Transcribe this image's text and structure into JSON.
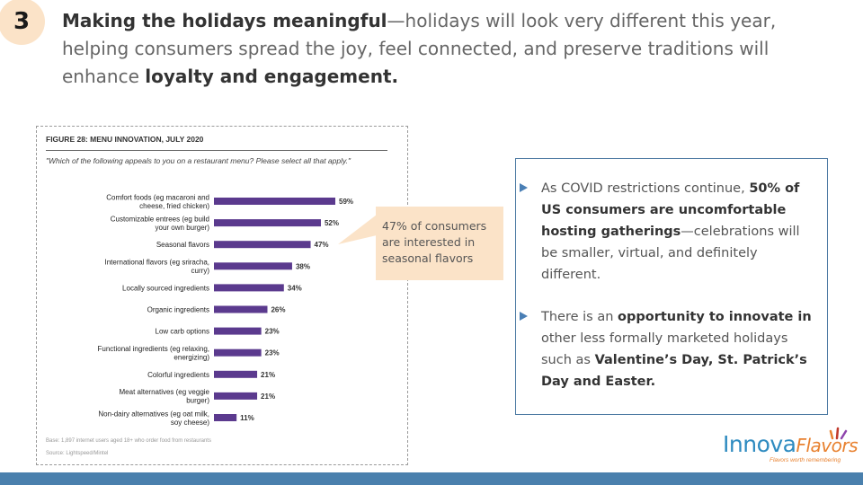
{
  "slide": {
    "number": "3",
    "headline_bold_1": "Making the holidays meaningful",
    "headline_text": "—holidays will look very different this year, helping consumers spread the joy, feel connected, and preserve traditions will enhance ",
    "headline_bold_2": "loyalty and engagement."
  },
  "figure": {
    "title": "FIGURE 28: MENU INNOVATION, JULY 2020",
    "question": "\"Which of the following appeals to you on a restaurant menu? Please select all that apply.\"",
    "base": "Base: 1,897 internet users aged 18+ who order food from restaurants",
    "source": "Source: Lightspeed/Mintel"
  },
  "chart_data": {
    "type": "bar",
    "orientation": "horizontal",
    "title": "FIGURE 28: MENU INNOVATION, JULY 2020",
    "categories": [
      [
        "Comfort foods (eg macaroni and",
        "cheese, fried chicken)"
      ],
      [
        "Customizable entrees (eg build",
        "your own burger)"
      ],
      [
        "Seasonal flavors"
      ],
      [
        "International flavors (eg sriracha,",
        "curry)"
      ],
      [
        "Locally sourced ingredients"
      ],
      [
        "Organic ingredients"
      ],
      [
        "Low carb options"
      ],
      [
        "Functional ingredients (eg relaxing,",
        "energizing)"
      ],
      [
        "Colorful ingredients"
      ],
      [
        "Meat alternatives (eg veggie",
        "burger)"
      ],
      [
        "Non-dairy alternatives (eg oat milk,",
        "soy cheese)"
      ]
    ],
    "values": [
      59,
      52,
      47,
      38,
      34,
      26,
      23,
      23,
      21,
      21,
      11
    ],
    "value_labels": [
      "59%",
      "52%",
      "47%",
      "38%",
      "34%",
      "26%",
      "23%",
      "23%",
      "21%",
      "21%",
      "11%"
    ],
    "bar_color": "#5b3a8e",
    "xlim": [
      0,
      100
    ],
    "grid": false,
    "legend": "none"
  },
  "callout": {
    "text": "47% of consumers are interested in seasonal flavors",
    "color": "#fbe3c8"
  },
  "bullets": {
    "b1_pre": "As COVID restrictions continue, ",
    "b1_bold": "50% of US consumers are uncomfortable hosting gatherings",
    "b1_post": "—celebrations will be smaller, virtual, and definitely different.",
    "b2_pre": "There is an ",
    "b2_bold1": "opportunity to innovate in",
    "b2_mid": " other less formally marketed holidays such as ",
    "b2_bold2": "Valentine’s Day, St. Patrick’s Day and Easter."
  },
  "logo": {
    "word_1": "Innova",
    "word_2": "Flavors",
    "tagline": "Flavors worth remembering"
  },
  "colors": {
    "accent_blue": "#4a80ad",
    "badge_peach": "#fbe3c8",
    "bar_purple": "#5b3a8e"
  }
}
